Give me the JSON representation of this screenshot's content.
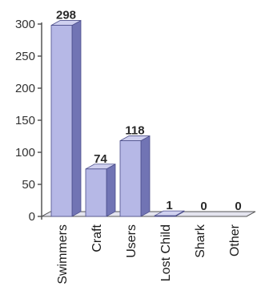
{
  "chart_data": {
    "type": "bar",
    "title": "",
    "xlabel": "",
    "ylabel": "",
    "categories": [
      "Swimmers",
      "Craft",
      "Users",
      "Lost Child",
      "Shark",
      "Other"
    ],
    "values": [
      298,
      74,
      118,
      1,
      0,
      0
    ],
    "data_labels": [
      "298",
      "74",
      "118",
      "1",
      "0",
      "0"
    ],
    "ylim": [
      0,
      300
    ],
    "yticks": [
      "0",
      "50",
      "100",
      "150",
      "200",
      "250",
      "300"
    ],
    "grid": false,
    "legend": "none",
    "style": "3d-bar",
    "colors": {
      "bar_front": "#b6b8e6",
      "bar_side": "#7174b4",
      "bar_top": "#cfd0ef",
      "axis": "#555555"
    }
  }
}
